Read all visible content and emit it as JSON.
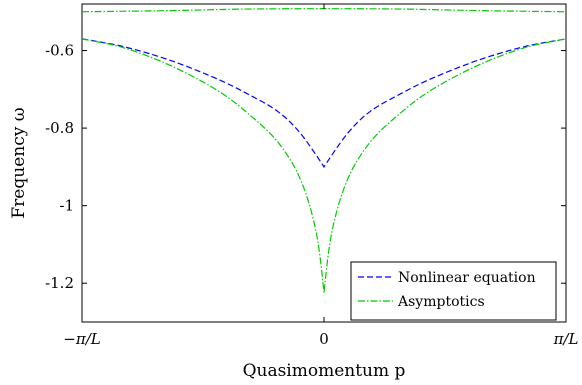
{
  "chart_data": {
    "type": "line",
    "title": "",
    "xlabel": "Quasimomentum p",
    "ylabel": "Frequency ω",
    "x_ticks": [
      "−π/L",
      "0",
      "π/L"
    ],
    "y_ticks": [
      "-0.6",
      "-0.8",
      "-1",
      "-1.2"
    ],
    "xlim": [
      -3.14159,
      3.14159
    ],
    "ylim": [
      -1.3,
      -0.48
    ],
    "grid": false,
    "legend_position": "bottom-right",
    "series": [
      {
        "name": "Nonlinear equation",
        "style": "dashed",
        "color": "#0000ff",
        "x": [
          -3.14159,
          -2.6,
          -2.0,
          -1.4,
          -1.0,
          -0.6,
          -0.3,
          0,
          0.3,
          0.6,
          1.0,
          1.4,
          2.0,
          2.6,
          3.14159
        ],
        "y": [
          -0.57,
          -0.59,
          -0.625,
          -0.672,
          -0.711,
          -0.757,
          -0.815,
          -0.9,
          -0.815,
          -0.757,
          -0.711,
          -0.672,
          -0.625,
          -0.59,
          -0.57
        ]
      },
      {
        "name": "Asymptotics",
        "style": "dash-dot",
        "color": "#00cc00",
        "x": [
          -3.14159,
          -2.6,
          -2.0,
          -1.4,
          -1.0,
          -0.6,
          -0.3,
          -0.1,
          0,
          0.1,
          0.3,
          0.6,
          1.0,
          1.4,
          2.0,
          2.6,
          3.14159
        ],
        "y": [
          -0.57,
          -0.593,
          -0.638,
          -0.701,
          -0.76,
          -0.836,
          -0.935,
          -1.07,
          -1.225,
          -1.07,
          -0.935,
          -0.836,
          -0.76,
          -0.701,
          -0.638,
          -0.593,
          -0.57
        ]
      },
      {
        "name": "",
        "style": "dash-dot",
        "color": "#00cc00",
        "x": [
          -3.14159,
          -2.0,
          -1.0,
          0,
          1.0,
          2.0,
          3.14159
        ],
        "y": [
          -0.5,
          -0.497,
          -0.493,
          -0.492,
          -0.493,
          -0.497,
          -0.5
        ]
      }
    ]
  }
}
